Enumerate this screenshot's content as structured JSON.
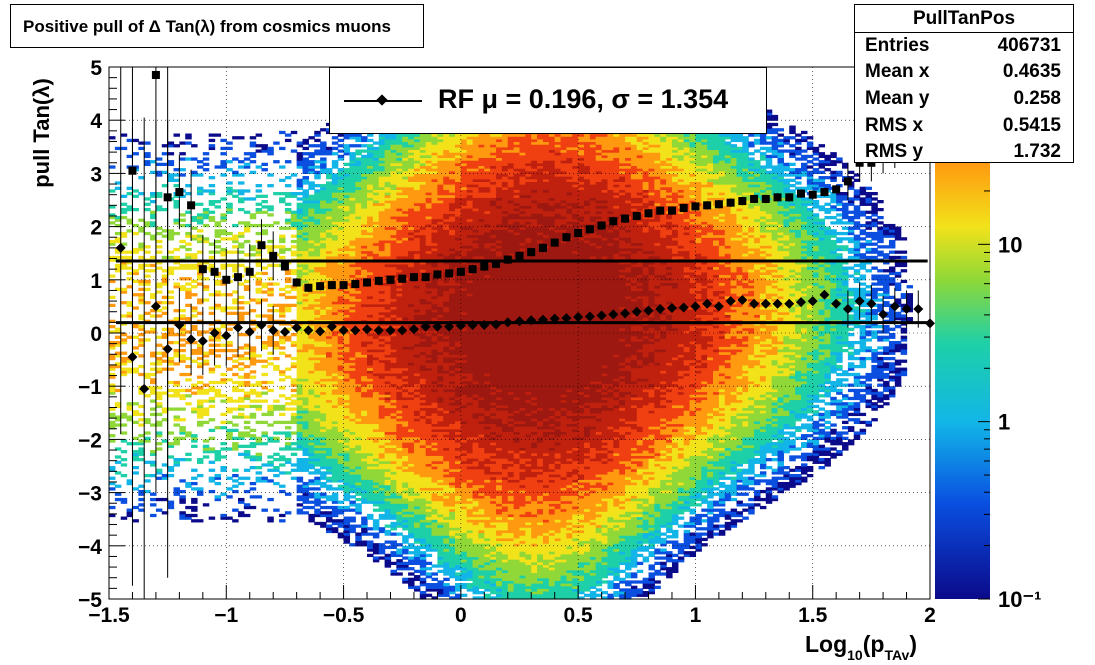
{
  "title": "Positive pull of Δ Tan(λ) from cosmics muons",
  "stats": {
    "name": "PullTanPos",
    "rows": [
      {
        "label": "Entries",
        "value": "406731"
      },
      {
        "label": "Mean x",
        "value": "0.4635"
      },
      {
        "label": "Mean y",
        "value": "0.258"
      },
      {
        "label": "RMS x",
        "value": "0.5415"
      },
      {
        "label": "RMS y",
        "value": "1.732"
      }
    ]
  },
  "legend": {
    "text": "RF μ =  0.196, σ =   1.354"
  },
  "chart_data": {
    "type": "heatmap",
    "xlabel": "Log10(pTAv)",
    "ylabel": "pull Tan(λ)",
    "xlim": [
      -1.5,
      2
    ],
    "ylim": [
      -5,
      5
    ],
    "x_ticks": [
      "−1.5",
      "−1",
      "−0.5",
      "0",
      "0.5",
      "1",
      "1.5",
      "2"
    ],
    "y_ticks": [
      "−5",
      "−4",
      "−3",
      "−2",
      "−1",
      "0",
      "1",
      "2",
      "3",
      "4",
      "5"
    ],
    "z_scale": "log",
    "z_ticks": [
      "10⁻¹",
      "1",
      "10"
    ],
    "grid": true,
    "fit_lines": [
      0.196,
      1.354
    ],
    "overlay_series": [
      {
        "marker": "diamond",
        "x": [
          -1.45,
          -1.4,
          -1.35,
          -1.3,
          -1.25,
          -1.2,
          -1.15,
          -1.1,
          -1.05,
          -1.0,
          -0.95,
          -0.9,
          -0.85,
          -0.8,
          -0.75,
          -0.7,
          -0.65,
          -0.6,
          -0.55,
          -0.5,
          -0.45,
          -0.4,
          -0.35,
          -0.3,
          -0.25,
          -0.2,
          -0.15,
          -0.1,
          -0.05,
          0.0,
          0.05,
          0.1,
          0.15,
          0.2,
          0.25,
          0.3,
          0.35,
          0.4,
          0.45,
          0.5,
          0.55,
          0.6,
          0.65,
          0.7,
          0.75,
          0.8,
          0.85,
          0.9,
          0.95,
          1.0,
          1.05,
          1.1,
          1.15,
          1.2,
          1.25,
          1.3,
          1.35,
          1.4,
          1.45,
          1.5,
          1.55,
          1.6,
          1.65,
          1.7,
          1.75,
          1.8,
          1.85,
          1.9,
          1.95,
          2.0
        ],
        "y": [
          1.6,
          -0.45,
          -1.05,
          0.5,
          -0.3,
          0.15,
          -0.12,
          -0.15,
          0.0,
          -0.05,
          0.1,
          0.02,
          0.15,
          0.05,
          0.02,
          0.1,
          0.05,
          0.03,
          0.12,
          0.05,
          0.05,
          0.07,
          0.05,
          0.05,
          0.05,
          0.07,
          0.12,
          0.12,
          0.12,
          0.14,
          0.15,
          0.15,
          0.16,
          0.2,
          0.22,
          0.24,
          0.25,
          0.27,
          0.28,
          0.3,
          0.31,
          0.33,
          0.35,
          0.37,
          0.4,
          0.42,
          0.45,
          0.47,
          0.48,
          0.5,
          0.55,
          0.5,
          0.6,
          0.62,
          0.55,
          0.55,
          0.55,
          0.55,
          0.58,
          0.6,
          0.72,
          0.55,
          0.45,
          0.6,
          0.55,
          0.35,
          0.5,
          0.45,
          0.45,
          0.18
        ]
      },
      {
        "marker": "square",
        "x": [
          -1.4,
          -1.3,
          -1.25,
          -1.2,
          -1.15,
          -1.1,
          -1.05,
          -1.0,
          -0.95,
          -0.9,
          -0.85,
          -0.8,
          -0.75,
          -0.7,
          -0.65,
          -0.6,
          -0.55,
          -0.5,
          -0.45,
          -0.4,
          -0.35,
          -0.3,
          -0.25,
          -0.2,
          -0.15,
          -0.1,
          -0.05,
          0.0,
          0.05,
          0.1,
          0.15,
          0.2,
          0.25,
          0.3,
          0.35,
          0.4,
          0.45,
          0.5,
          0.55,
          0.6,
          0.65,
          0.7,
          0.75,
          0.8,
          0.85,
          0.9,
          0.95,
          1.0,
          1.05,
          1.1,
          1.15,
          1.2,
          1.25,
          1.3,
          1.35,
          1.4,
          1.45,
          1.5,
          1.55,
          1.6,
          1.65,
          1.7,
          1.75,
          1.8,
          1.85,
          1.9
        ],
        "y": [
          3.05,
          4.85,
          2.55,
          2.65,
          2.4,
          1.2,
          1.15,
          1.0,
          1.05,
          1.15,
          1.65,
          1.45,
          1.25,
          0.95,
          0.85,
          0.88,
          0.9,
          0.9,
          0.92,
          0.95,
          0.98,
          1.0,
          1.02,
          1.05,
          1.05,
          1.1,
          1.12,
          1.15,
          1.2,
          1.25,
          1.3,
          1.38,
          1.45,
          1.52,
          1.6,
          1.7,
          1.8,
          1.88,
          1.95,
          2.02,
          2.1,
          2.15,
          2.2,
          2.25,
          2.3,
          2.3,
          2.35,
          2.38,
          2.4,
          2.42,
          2.45,
          2.48,
          2.52,
          2.52,
          2.55,
          2.55,
          2.62,
          2.6,
          2.65,
          2.7,
          2.85,
          3.2,
          3.2,
          3.35,
          3.45,
          3.95
        ]
      }
    ]
  }
}
